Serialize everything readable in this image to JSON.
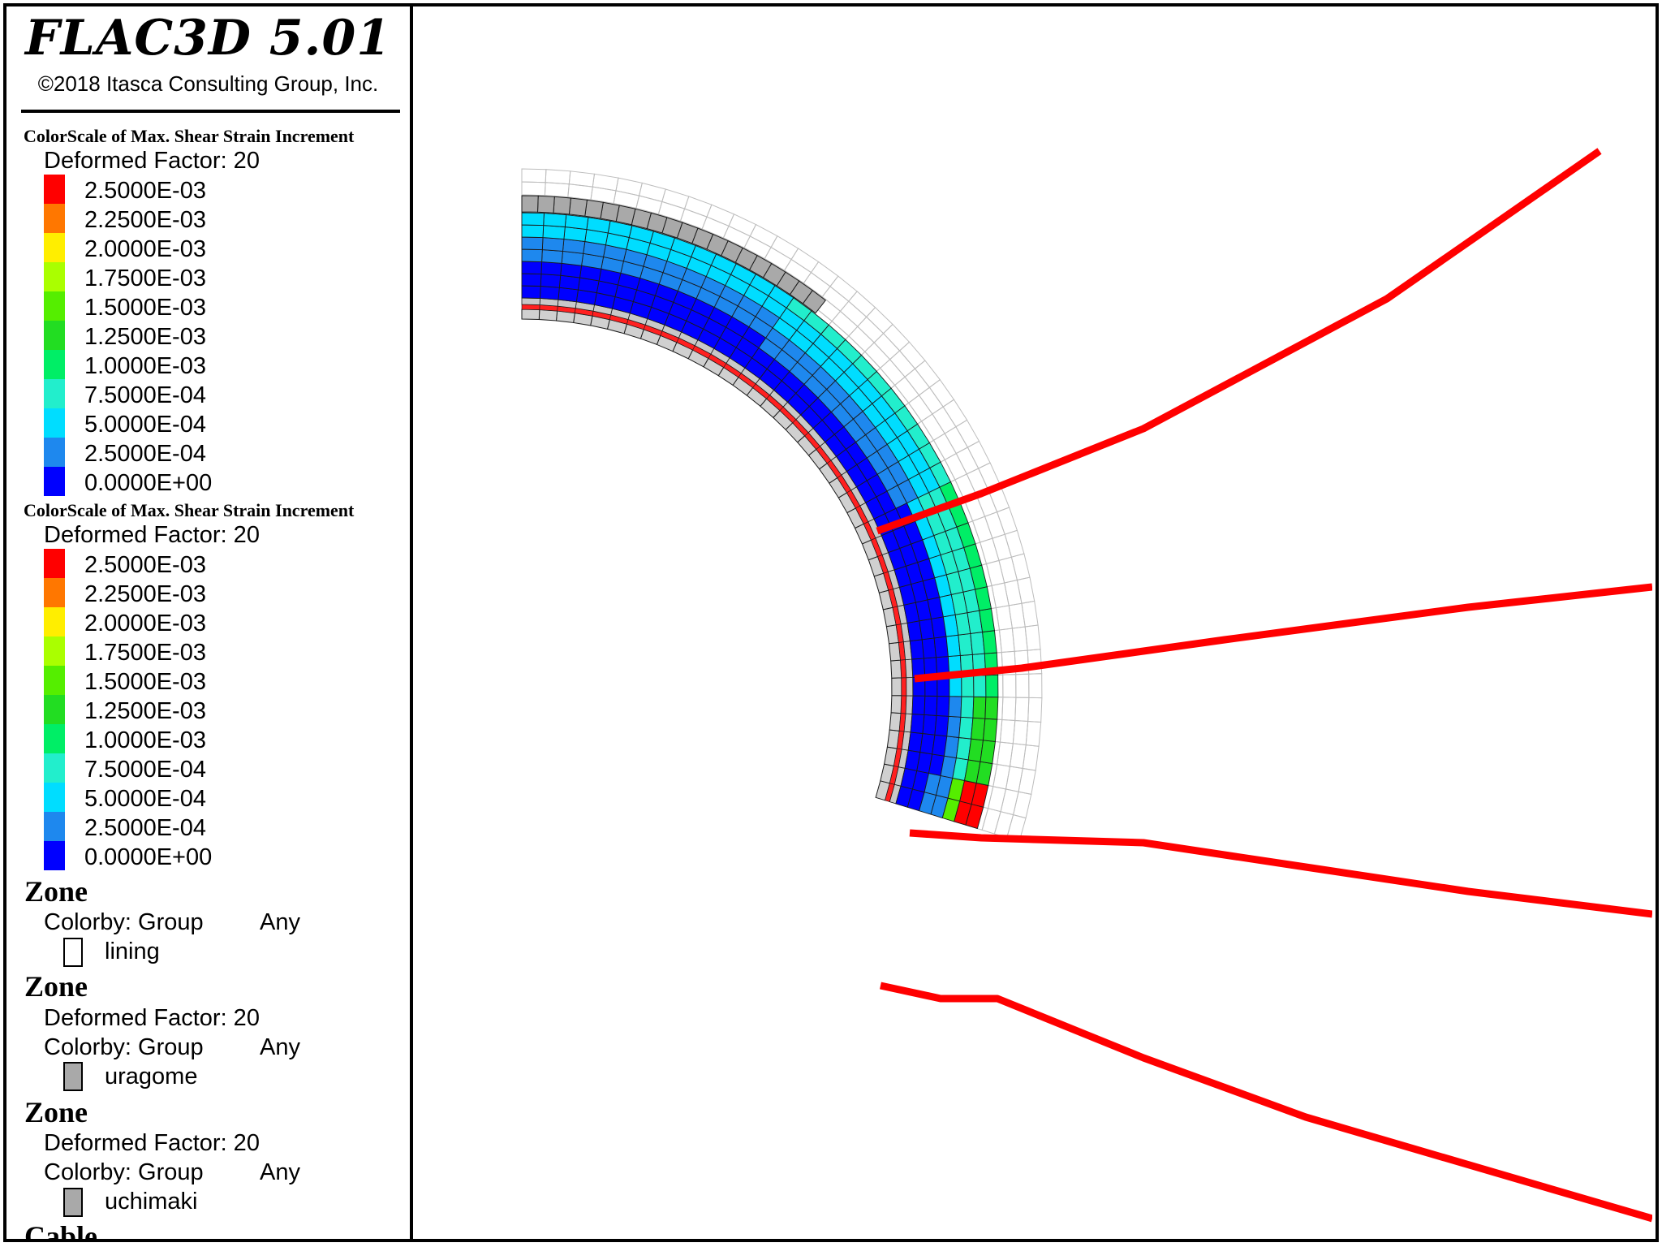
{
  "app": {
    "title": "FLAC3D 5.01",
    "copyright": "©2018 Itasca Consulting Group, Inc."
  },
  "color_scales": [
    {
      "heading": "ColorScale of Max. Shear Strain Increment",
      "deformed_label": "Deformed Factor: 20",
      "ticks": [
        "2.5000E-03",
        "2.2500E-03",
        "2.0000E-03",
        "1.7500E-03",
        "1.5000E-03",
        "1.2500E-03",
        "1.0000E-03",
        "7.5000E-04",
        "5.0000E-04",
        "2.5000E-04",
        "0.0000E+00"
      ]
    },
    {
      "heading": "ColorScale of Max. Shear Strain Increment",
      "deformed_label": "Deformed Factor: 20",
      "ticks": [
        "2.5000E-03",
        "2.2500E-03",
        "2.0000E-03",
        "1.7500E-03",
        "1.5000E-03",
        "1.2500E-03",
        "1.0000E-03",
        "7.5000E-04",
        "5.0000E-04",
        "2.5000E-04",
        "0.0000E+00"
      ]
    }
  ],
  "scale_colors": [
    "#ff0000",
    "#ff7700",
    "#ffee00",
    "#aaff00",
    "#55ee00",
    "#22dd22",
    "#00ee66",
    "#22eecc",
    "#00ddff",
    "#1e88ee",
    "#0000ff"
  ],
  "zones": [
    {
      "heading": "Zone",
      "deformed_label": "",
      "colorby": "Colorby: Group",
      "colorby_value": "Any",
      "group_name": "lining",
      "group_color": "#ffffff"
    },
    {
      "heading": "Zone",
      "deformed_label": "Deformed Factor: 20",
      "colorby": "Colorby: Group",
      "colorby_value": "Any",
      "group_name": "uragome",
      "group_color": "#a9a9a9"
    },
    {
      "heading": "Zone",
      "deformed_label": "Deformed Factor: 20",
      "colorby": "Colorby: Group",
      "colorby_value": "Any",
      "group_name": "uchimaki",
      "group_color": "#a9a9a9"
    }
  ],
  "cable_heading": "Cable",
  "colors": {
    "cable": "#ff0000",
    "mesh_line": "#1a1a1a",
    "undeformed_mesh": "#bdbdbd",
    "shell": "#a9a9a9",
    "lining_stripe": "#ff2020"
  }
}
